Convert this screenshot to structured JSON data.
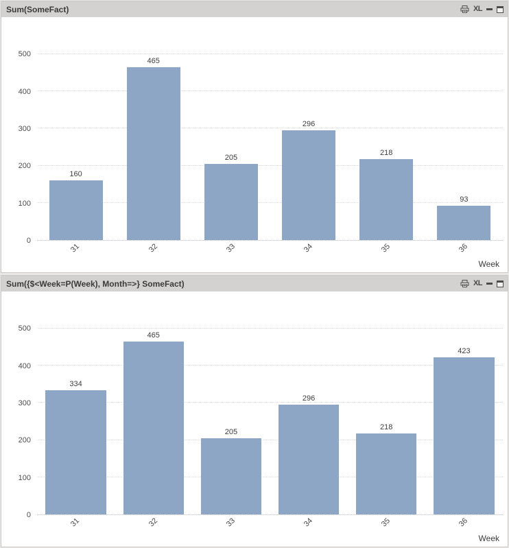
{
  "chart_data": [
    {
      "type": "bar",
      "title": "Sum(SomeFact)",
      "categories": [
        "31",
        "32",
        "33",
        "34",
        "35",
        "36"
      ],
      "values": [
        160,
        465,
        205,
        296,
        218,
        93
      ],
      "xlabel": "Week",
      "ylabel": "",
      "ylim": [
        0,
        550
      ],
      "yticks": [
        0,
        100,
        200,
        300,
        400,
        500
      ],
      "grid": true,
      "legend": false,
      "data_labels": true,
      "bar_width_pct": 69,
      "bar_color": "#8EA6C6"
    },
    {
      "type": "bar",
      "title": "Sum({$<Week=P(Week), Month=>} SomeFact)",
      "categories": [
        "31",
        "32",
        "33",
        "34",
        "35",
        "36"
      ],
      "values": [
        334,
        465,
        205,
        296,
        218,
        423
      ],
      "xlabel": "Week",
      "ylabel": "",
      "ylim": [
        0,
        550
      ],
      "yticks": [
        0,
        100,
        200,
        300,
        400,
        500
      ],
      "grid": true,
      "legend": false,
      "data_labels": true,
      "bar_width_pct": 78,
      "bar_color": "#8EA6C6"
    }
  ],
  "caption_icons": {
    "print": "print-icon",
    "excel_label": "XL",
    "minimize": "minimize-icon",
    "maximize": "maximize-icon"
  },
  "colors": {
    "bar": "#8EA6C6",
    "caption_bg": "#D3D2D0",
    "caption_text": "#3A3A3A",
    "page_bg": "#E9E8E6",
    "window_border": "#C9C8C6",
    "gridline": "#DADADA",
    "axis_text": "#4C4C4C"
  }
}
